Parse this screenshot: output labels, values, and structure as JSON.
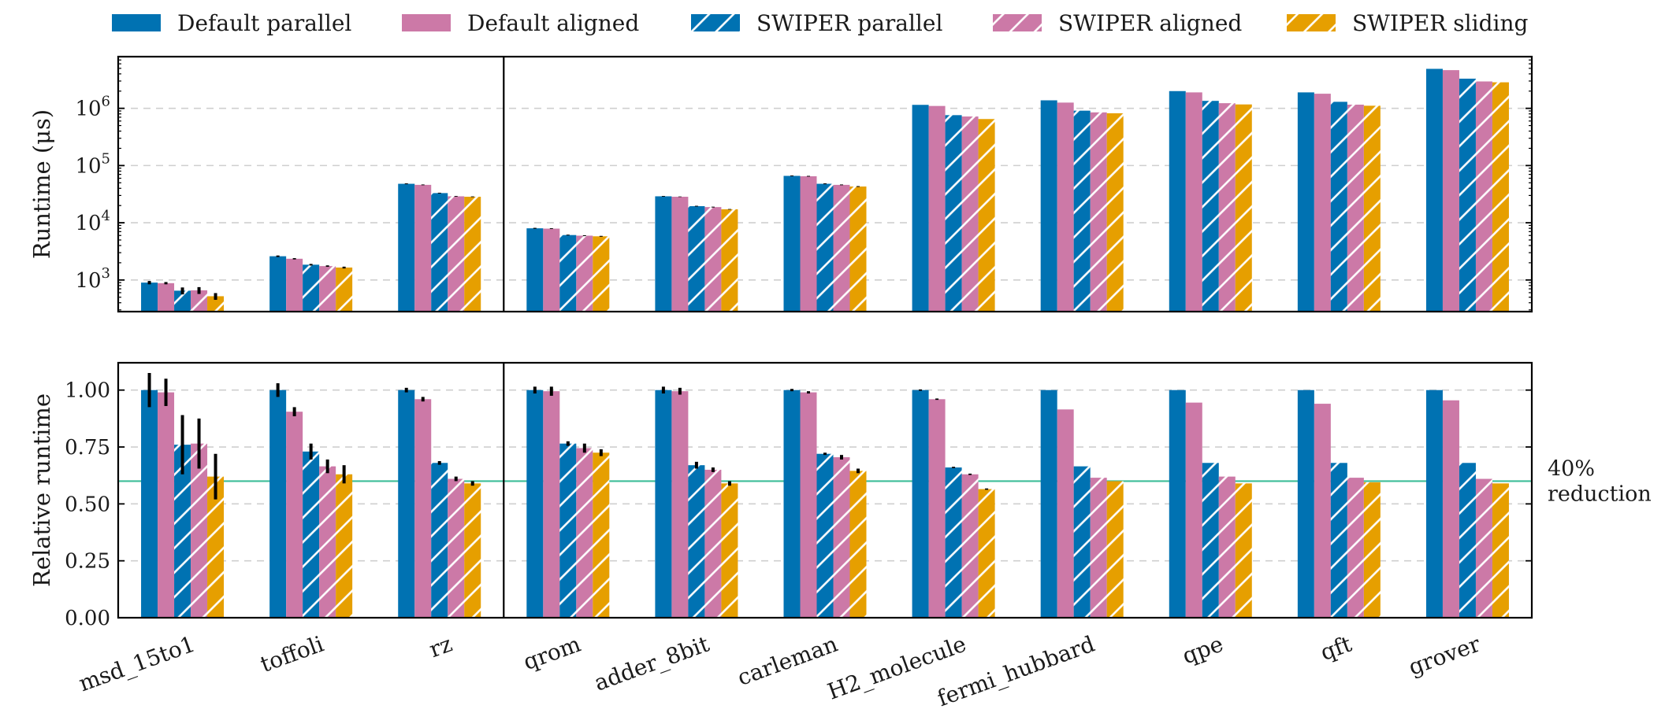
{
  "chart_data": {
    "type": "bar",
    "categories": [
      "msd_15to1",
      "toffoli",
      "rz",
      "qrom",
      "adder_8bit",
      "carleman",
      "H2_molecule",
      "fermi_hubbard",
      "qpe",
      "qft",
      "grover"
    ],
    "legend": {
      "placement": "top"
    },
    "series": [
      {
        "name": "Default parallel",
        "color": "#0072B2",
        "hatch": false
      },
      {
        "name": "Default aligned",
        "color": "#CC79A7",
        "hatch": false
      },
      {
        "name": "SWIPER parallel",
        "color": "#0072B2",
        "hatch": true
      },
      {
        "name": "SWIPER aligned",
        "color": "#CC79A7",
        "hatch": true
      },
      {
        "name": "SWIPER sliding",
        "color": "#E69F00",
        "hatch": true
      }
    ],
    "panels": [
      {
        "id": "runtime",
        "ylabel": "Runtime (μs)",
        "yscale": "log",
        "ylim": [
          280,
          8000000
        ],
        "yticks": [
          1000,
          10000,
          100000,
          1000000
        ],
        "ytick_labels": [
          [
            "10",
            "3"
          ],
          [
            "10",
            "4"
          ],
          [
            "10",
            "5"
          ],
          [
            "10",
            "6"
          ]
        ],
        "grid": true,
        "values": [
          [
            900,
            880,
            650,
            660,
            520
          ],
          [
            2600,
            2350,
            1850,
            1750,
            1650
          ],
          [
            48000,
            46000,
            33000,
            29000,
            28500
          ],
          [
            8000,
            7900,
            6100,
            5950,
            5800
          ],
          [
            29000,
            28500,
            19500,
            18800,
            17200
          ],
          [
            66000,
            65000,
            48000,
            46000,
            43000
          ],
          [
            1150000,
            1100000,
            760000,
            720000,
            650000
          ],
          [
            1380000,
            1260000,
            910000,
            850000,
            820000
          ],
          [
            2000000,
            1900000,
            1350000,
            1230000,
            1170000
          ],
          [
            1900000,
            1800000,
            1300000,
            1160000,
            1110000
          ],
          [
            4900000,
            4650000,
            3300000,
            2950000,
            2850000
          ]
        ],
        "errors": [
          [
            60,
            40,
            90,
            90,
            70
          ],
          [
            80,
            60,
            60,
            50,
            60
          ],
          [
            800,
            700,
            500,
            400,
            400
          ],
          [
            150,
            120,
            100,
            100,
            100
          ],
          [
            400,
            300,
            300,
            300,
            200
          ],
          [
            1000,
            1000,
            800,
            700,
            700
          ],
          [
            0,
            0,
            0,
            0,
            0
          ],
          [
            0,
            0,
            0,
            0,
            0
          ],
          [
            0,
            0,
            0,
            0,
            0
          ],
          [
            0,
            0,
            0,
            0,
            0
          ],
          [
            0,
            0,
            0,
            0,
            0
          ]
        ]
      },
      {
        "id": "relative",
        "ylabel": "Relative runtime",
        "yscale": "linear",
        "ylim": [
          0,
          1.12
        ],
        "yticks": [
          0,
          0.25,
          0.5,
          0.75,
          1.0
        ],
        "ytick_labels": [
          "0.00",
          "0.25",
          "0.50",
          "0.75",
          "1.00"
        ],
        "grid": true,
        "values": [
          [
            1.0,
            0.99,
            0.76,
            0.765,
            0.62
          ],
          [
            1.0,
            0.905,
            0.73,
            0.665,
            0.63
          ],
          [
            1.0,
            0.96,
            0.68,
            0.61,
            0.59
          ],
          [
            1.0,
            0.995,
            0.765,
            0.745,
            0.725
          ],
          [
            1.0,
            0.995,
            0.67,
            0.65,
            0.59
          ],
          [
            1.0,
            0.99,
            0.72,
            0.705,
            0.645
          ],
          [
            1.0,
            0.96,
            0.66,
            0.63,
            0.565
          ],
          [
            1.0,
            0.915,
            0.665,
            0.615,
            0.6
          ],
          [
            1.0,
            0.945,
            0.68,
            0.62,
            0.59
          ],
          [
            1.0,
            0.94,
            0.68,
            0.615,
            0.595
          ],
          [
            1.0,
            0.955,
            0.68,
            0.61,
            0.59
          ]
        ],
        "errors": [
          [
            0.075,
            0.06,
            0.13,
            0.11,
            0.1
          ],
          [
            0.03,
            0.02,
            0.035,
            0.03,
            0.04
          ],
          [
            0.01,
            0.01,
            0.008,
            0.01,
            0.01
          ],
          [
            0.015,
            0.02,
            0.01,
            0.02,
            0.015
          ],
          [
            0.015,
            0.015,
            0.015,
            0.01,
            0.01
          ],
          [
            0.005,
            0.005,
            0.005,
            0.01,
            0.01
          ],
          [
            0.003,
            0.003,
            0.003,
            0.003,
            0.003
          ],
          [
            0,
            0,
            0,
            0,
            0
          ],
          [
            0,
            0,
            0,
            0,
            0
          ],
          [
            0,
            0,
            0,
            0,
            0
          ],
          [
            0,
            0,
            0,
            0,
            0
          ]
        ],
        "reference_line": {
          "y": 0.6,
          "color": "#3DBE98",
          "label_lines": [
            "40%",
            "reduction"
          ]
        }
      }
    ],
    "divider_after_category": 2
  }
}
